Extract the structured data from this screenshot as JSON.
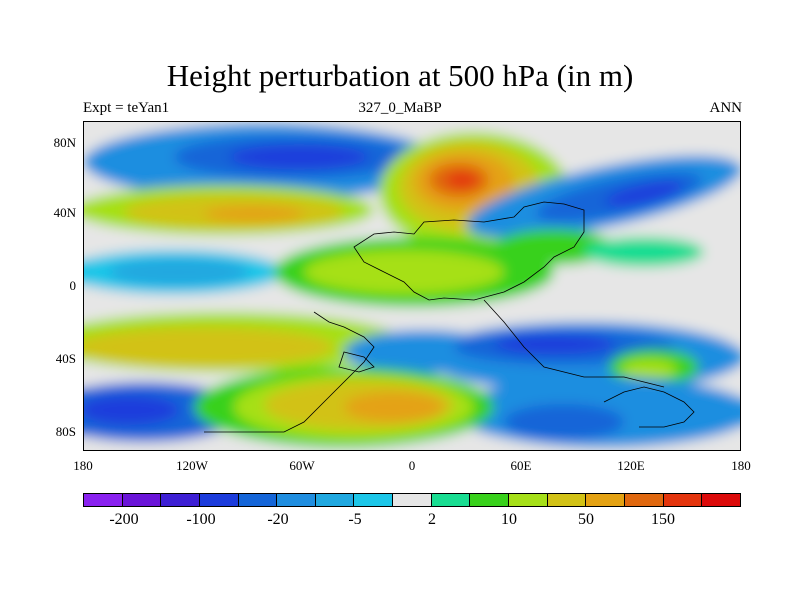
{
  "header": {
    "title": "Height perturbation at 500 hPa (in m)",
    "left": "Expt = teYan1",
    "center": "327_0_MaBP",
    "right": "ANN"
  },
  "map": {
    "y_labels": [
      "80N",
      "40N",
      "0",
      "40S",
      "80S"
    ],
    "x_labels": [
      "180",
      "120W",
      "60W",
      "0",
      "60E",
      "120E",
      "180"
    ]
  },
  "colorbar": {
    "colors": [
      "#8a22f0",
      "#6a14d8",
      "#3d1fd4",
      "#1c3cdc",
      "#1465d8",
      "#1f8ee0",
      "#20a8e0",
      "#1cc6e8",
      "#e6e6e6",
      "#19dd92",
      "#38d11b",
      "#a6e019",
      "#d2c216",
      "#e4a213",
      "#e0680f",
      "#e4350d",
      "#dc0a0a"
    ],
    "labels": [
      "-200",
      "-100",
      "-20",
      "-5",
      "2",
      "10",
      "50",
      "150"
    ]
  }
}
